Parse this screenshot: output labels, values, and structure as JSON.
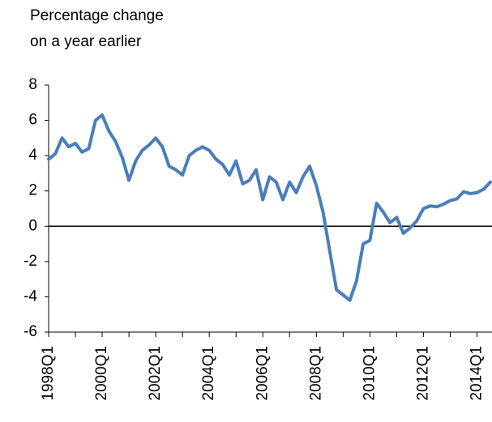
{
  "chart_data": {
    "type": "line",
    "title_lines": [
      "Percentage change",
      "on a year earlier"
    ],
    "categories": [
      "1998Q1",
      null,
      null,
      null,
      null,
      null,
      null,
      null,
      "2000Q1",
      null,
      null,
      null,
      null,
      null,
      null,
      null,
      "2002Q1",
      null,
      null,
      null,
      null,
      null,
      null,
      null,
      "2004Q1",
      null,
      null,
      null,
      null,
      null,
      null,
      null,
      "2006Q1",
      null,
      null,
      null,
      null,
      null,
      null,
      null,
      "2008Q1",
      null,
      null,
      null,
      null,
      null,
      null,
      null,
      "2010Q1",
      null,
      null,
      null,
      null,
      null,
      null,
      null,
      "2012Q1",
      null,
      null,
      null,
      null,
      null,
      null,
      null,
      "2014Q1",
      null,
      null
    ],
    "series": [
      {
        "name": "Percentage change on a year earlier",
        "color": "#4a7ebb",
        "values": [
          3.8,
          4.1,
          5.0,
          4.5,
          4.7,
          4.2,
          4.4,
          6.0,
          6.3,
          5.4,
          4.8,
          3.9,
          2.6,
          3.7,
          4.3,
          4.6,
          5.0,
          4.5,
          3.4,
          3.2,
          2.9,
          4.0,
          4.3,
          4.5,
          4.3,
          3.8,
          3.5,
          2.9,
          3.7,
          2.4,
          2.6,
          3.2,
          1.5,
          2.8,
          2.5,
          1.5,
          2.5,
          1.9,
          2.8,
          3.4,
          2.3,
          0.8,
          -1.4,
          -3.6,
          -3.9,
          -4.2,
          -3.1,
          -1.0,
          -0.8,
          1.3,
          0.8,
          0.2,
          0.5,
          -0.4,
          -0.1,
          0.3,
          1.0,
          1.15,
          1.1,
          1.25,
          1.45,
          1.55,
          1.95,
          1.85,
          1.9,
          2.1,
          2.5
        ]
      }
    ],
    "ylim": [
      -6,
      8
    ],
    "yticks": [
      -6,
      -4,
      -2,
      0,
      2,
      4,
      6,
      8
    ],
    "grid": false
  }
}
